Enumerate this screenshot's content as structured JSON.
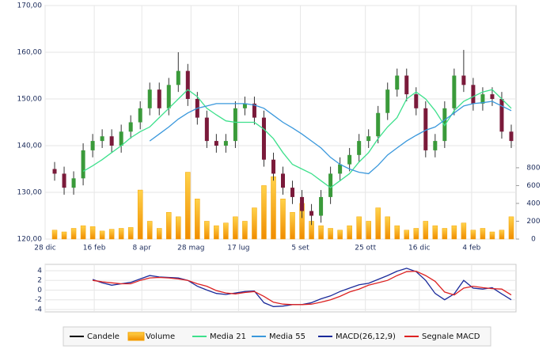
{
  "chart_data": [
    {
      "type": "candlestick",
      "x": [
        6,
        12,
        18,
        24,
        30,
        36,
        42,
        48,
        54,
        60,
        66,
        72,
        78,
        84,
        90,
        96,
        102,
        108,
        114,
        120,
        126,
        132,
        138,
        144,
        150,
        156,
        162,
        168,
        174,
        180,
        186,
        192,
        198,
        204,
        210,
        216,
        222,
        228,
        234,
        240,
        246,
        252,
        258,
        264,
        270,
        276,
        282,
        288,
        294
      ],
      "xlim": [
        0,
        297
      ],
      "xticks": [
        {
          "value": 0,
          "label": "28 dic"
        },
        {
          "value": 31,
          "label": "16 feb"
        },
        {
          "value": 61,
          "label": "8 apr"
        },
        {
          "value": 92,
          "label": "28 mag"
        },
        {
          "value": 122,
          "label": "17 lug"
        },
        {
          "value": 161,
          "label": "5 set"
        },
        {
          "value": 202,
          "label": "25 ott"
        },
        {
          "value": 236,
          "label": "16 dic"
        },
        {
          "value": 269,
          "label": "4 feb"
        }
      ],
      "ylim": [
        120,
        170
      ],
      "yticks": [
        {
          "value": 120,
          "label": "120,00"
        },
        {
          "value": 130,
          "label": "130,00"
        },
        {
          "value": 140,
          "label": "140,00"
        },
        {
          "value": 150,
          "label": "150,00"
        },
        {
          "value": 160,
          "label": "160,00"
        },
        {
          "value": 170,
          "label": "170,00"
        }
      ],
      "y2lim": [
        0,
        2620
      ],
      "y2ticks": [
        0,
        200,
        400,
        600,
        800
      ],
      "grid": true,
      "series": [
        {
          "name": "Candele",
          "type": "candlestick",
          "color": "#000000",
          "up_color": "#3a9a3a",
          "down_color": "#7a1a3a",
          "open": [
            135,
            134,
            131,
            133,
            139,
            141,
            142,
            140,
            143,
            145,
            148,
            152,
            148,
            153,
            156,
            150,
            146,
            141,
            140,
            141,
            148,
            149,
            146,
            137,
            134,
            131,
            129,
            126,
            125,
            129,
            134,
            136,
            138,
            141,
            142,
            147,
            152,
            155,
            151,
            148,
            139,
            141,
            148,
            155,
            153,
            149,
            151,
            150,
            143
          ],
          "high": [
            136.5,
            135.5,
            134.5,
            140.5,
            142.5,
            143.5,
            143.5,
            144.5,
            146.5,
            149.5,
            153.5,
            153.5,
            154.5,
            160,
            157.5,
            151.5,
            147.5,
            142.5,
            142.5,
            149.5,
            150.5,
            150.5,
            147.5,
            138.5,
            135.5,
            132.5,
            130.5,
            127.5,
            130.5,
            135.5,
            137.5,
            139.5,
            142.5,
            143.5,
            148.5,
            153.5,
            156.5,
            156.5,
            152.5,
            149.5,
            142.5,
            149.5,
            156.5,
            160.5,
            154.5,
            152.5,
            152.5,
            151.5,
            144.5
          ],
          "low": [
            132.5,
            129.5,
            129.5,
            131.5,
            137.5,
            139.5,
            138.5,
            138.5,
            141.5,
            143.5,
            146.5,
            146.5,
            146.5,
            151.5,
            148.5,
            144.5,
            139.5,
            138.5,
            138.5,
            139.5,
            146.5,
            144.5,
            135.5,
            132.5,
            129.5,
            127.5,
            124.5,
            123,
            123.5,
            127.5,
            132.5,
            134.5,
            136.5,
            139.5,
            140.5,
            145.5,
            150.5,
            149.5,
            146.5,
            137.5,
            137.5,
            139.5,
            146.5,
            151.5,
            147.5,
            147.5,
            148.5,
            141.5,
            139.5
          ],
          "close": [
            134,
            131,
            133,
            139,
            141,
            142,
            140,
            143,
            145,
            148,
            152,
            148,
            153,
            156,
            150,
            146,
            141,
            140,
            141,
            148,
            149,
            146,
            137,
            134,
            131,
            129,
            126,
            125,
            129,
            134,
            136,
            138,
            141,
            142,
            147,
            152,
            155,
            151,
            148,
            139,
            141,
            148,
            155,
            153,
            149,
            151,
            150,
            143,
            141
          ]
        },
        {
          "name": "Volume",
          "type": "bar",
          "axis": "y2",
          "color": "#f5a300",
          "values": [
            100,
            80,
            120,
            150,
            140,
            90,
            110,
            120,
            130,
            550,
            200,
            120,
            300,
            250,
            750,
            450,
            200,
            150,
            180,
            250,
            200,
            350,
            600,
            700,
            450,
            300,
            400,
            200,
            150,
            120,
            100,
            150,
            250,
            200,
            350,
            250,
            150,
            100,
            120,
            200,
            150,
            120,
            150,
            180,
            100,
            120,
            80,
            100,
            250
          ]
        },
        {
          "name": "Media 21",
          "type": "line",
          "color": "#3ee08c",
          "values": [
            null,
            null,
            null,
            134.5,
            135.7,
            137,
            138.5,
            140,
            141.7,
            143,
            144,
            146,
            148,
            150,
            152,
            150.5,
            148,
            146.6,
            145.3,
            145,
            145,
            145,
            143.5,
            141.5,
            138.5,
            136,
            135,
            134,
            132.5,
            131,
            132.5,
            134,
            136.5,
            138.5,
            141.5,
            144,
            146,
            150,
            151.5,
            150,
            147.5,
            144.3,
            147.5,
            149.5,
            150.5,
            151.5,
            152,
            150,
            148
          ]
        },
        {
          "name": "Media 55",
          "type": "line",
          "color": "#3a98dc",
          "values": [
            null,
            null,
            null,
            null,
            null,
            null,
            null,
            null,
            null,
            null,
            141,
            142.5,
            144,
            145.7,
            147,
            148,
            148.5,
            149,
            149,
            149,
            149,
            148.7,
            148,
            146.5,
            145,
            143.8,
            142.5,
            141,
            139.5,
            137.5,
            136,
            135,
            134.3,
            134,
            135.8,
            138,
            139.5,
            141,
            142.2,
            143.3,
            144,
            145.5,
            147,
            148.5,
            149,
            149.2,
            149.5,
            148.5,
            147.5
          ]
        }
      ]
    },
    {
      "type": "line",
      "ylim": [
        -4.5,
        5.3
      ],
      "yticks": [
        4,
        2,
        0,
        -2,
        -4
      ],
      "grid": true,
      "series": [
        {
          "name": "MACD(26,12,9)",
          "type": "line",
          "color": "#1a2a9a",
          "values": [
            null,
            null,
            null,
            null,
            2.2,
            1.5,
            1,
            1.3,
            1.6,
            2.3,
            3,
            2.7,
            2.6,
            2.5,
            2,
            0.8,
            0,
            -0.7,
            -0.9,
            -0.6,
            -0.3,
            -0.2,
            -2.6,
            -3.4,
            -3.3,
            -3,
            -3,
            -2.6,
            -1.8,
            -1.2,
            -0.3,
            0.4,
            1.1,
            1.4,
            2.2,
            3,
            3.9,
            4.5,
            3.8,
            2,
            -0.7,
            -2,
            -0.8,
            2,
            0.4,
            0.2,
            0.5,
            -0.8,
            -2
          ]
        },
        {
          "name": "Segnale MACD",
          "type": "line",
          "color": "#dd2222",
          "values": [
            null,
            null,
            null,
            null,
            2,
            1.7,
            1.5,
            1.3,
            1.3,
            2,
            2.5,
            2.6,
            2.5,
            2.3,
            2,
            1.3,
            0.8,
            -0.1,
            -0.6,
            -0.8,
            -0.5,
            -0.3,
            -1.3,
            -2.5,
            -2.9,
            -3,
            -3,
            -2.9,
            -2.5,
            -2,
            -1.3,
            -0.4,
            0.2,
            1,
            1.5,
            2,
            3,
            3.8,
            3.9,
            3,
            1.8,
            -0.4,
            -1,
            0.4,
            0.8,
            0.5,
            0.3,
            0.2,
            -1
          ]
        }
      ]
    }
  ]
}
